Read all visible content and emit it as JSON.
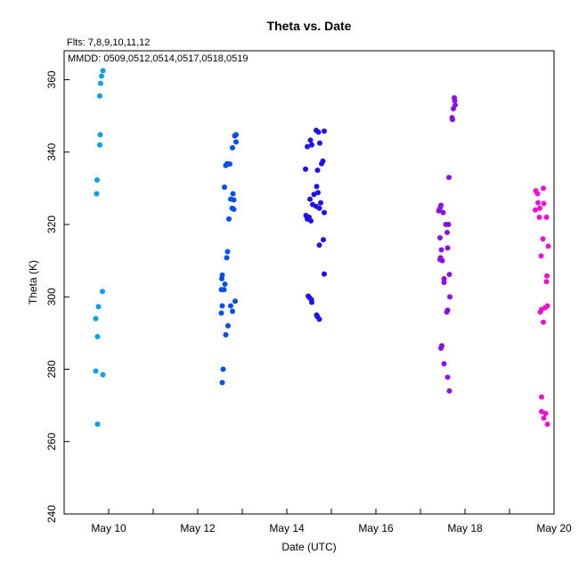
{
  "chart_data": {
    "type": "scatter",
    "title": "Theta  vs. Date",
    "annotations": [
      "Flts: 7,8,9,10,11,12",
      "MMDD: 0509,0512,0514,0517,0518,0519"
    ],
    "xlabel": "Date (UTC)",
    "ylabel": "Theta (K)",
    "xlim": [
      "2024-05-09",
      "2024-05-20"
    ],
    "ylim": [
      240,
      368
    ],
    "x_ticks": [
      {
        "value": "2024-05-10",
        "label": "May 10"
      },
      {
        "value": "2024-05-12",
        "label": "May 12"
      },
      {
        "value": "2024-05-14",
        "label": "May 14"
      },
      {
        "value": "2024-05-16",
        "label": "May 16"
      },
      {
        "value": "2024-05-18",
        "label": "May 18"
      },
      {
        "value": "2024-05-20",
        "label": "May 20"
      }
    ],
    "x_minor_ticks": [
      "2024-05-11",
      "2024-05-13",
      "2024-05-15",
      "2024-05-17",
      "2024-05-19"
    ],
    "y_ticks": [
      240,
      260,
      280,
      300,
      320,
      340,
      360
    ],
    "grid": false,
    "legend": "none",
    "series": [
      {
        "color": "#00a0f0",
        "points": [
          [
            9.87,
            362.5
          ],
          [
            9.84,
            361.0
          ],
          [
            9.82,
            359.0
          ],
          [
            9.8,
            355.5
          ],
          [
            9.81,
            344.8
          ],
          [
            9.8,
            342.0
          ],
          [
            9.74,
            332.3
          ],
          [
            9.73,
            328.5
          ],
          [
            9.86,
            301.5
          ],
          [
            9.77,
            297.3
          ],
          [
            9.71,
            294.0
          ],
          [
            9.75,
            289.0
          ],
          [
            9.71,
            279.5
          ],
          [
            9.87,
            278.5
          ],
          [
            9.75,
            264.8
          ]
        ]
      },
      {
        "color": "#0050f0",
        "points": [
          [
            12.86,
            344.8
          ],
          [
            12.83,
            344.5
          ],
          [
            12.86,
            342.8
          ],
          [
            12.78,
            341.2
          ],
          [
            12.66,
            336.8
          ],
          [
            12.72,
            336.7
          ],
          [
            12.63,
            336.3
          ],
          [
            12.6,
            330.3
          ],
          [
            12.79,
            328.5
          ],
          [
            12.74,
            327.0
          ],
          [
            12.81,
            326.8
          ],
          [
            12.77,
            324.5
          ],
          [
            12.81,
            324.2
          ],
          [
            12.7,
            321.5
          ],
          [
            12.67,
            312.5
          ],
          [
            12.65,
            310.8
          ],
          [
            12.55,
            306.0
          ],
          [
            12.54,
            305.0
          ],
          [
            12.61,
            303.5
          ],
          [
            12.53,
            302.0
          ],
          [
            12.59,
            302.0
          ],
          [
            12.84,
            298.8
          ],
          [
            12.74,
            297.5
          ],
          [
            12.55,
            297.5
          ],
          [
            12.78,
            296.0
          ],
          [
            12.53,
            295.5
          ],
          [
            12.68,
            292.0
          ],
          [
            12.63,
            289.5
          ],
          [
            12.57,
            280.0
          ],
          [
            12.55,
            276.3
          ]
        ]
      },
      {
        "color": "#2010f0",
        "points": [
          [
            14.66,
            346.0
          ],
          [
            14.71,
            345.5
          ],
          [
            14.84,
            345.8
          ],
          [
            14.53,
            343.3
          ],
          [
            14.56,
            342.0
          ],
          [
            14.74,
            342.5
          ],
          [
            14.46,
            341.5
          ],
          [
            14.81,
            337.5
          ],
          [
            14.78,
            336.8
          ],
          [
            14.42,
            335.3
          ],
          [
            14.69,
            335.0
          ],
          [
            14.67,
            330.5
          ],
          [
            14.7,
            328.8
          ],
          [
            14.61,
            328.3
          ],
          [
            14.52,
            327.0
          ],
          [
            14.76,
            326.0
          ],
          [
            14.58,
            325.5
          ],
          [
            14.66,
            325.0
          ],
          [
            14.73,
            324.5
          ],
          [
            14.84,
            323.3
          ],
          [
            14.43,
            322.5
          ],
          [
            14.5,
            322.0
          ],
          [
            14.46,
            321.5
          ],
          [
            14.54,
            321.0
          ],
          [
            14.82,
            315.8
          ],
          [
            14.73,
            314.3
          ],
          [
            14.84,
            306.3
          ],
          [
            14.48,
            300.2
          ],
          [
            14.51,
            299.8
          ],
          [
            14.55,
            299.3
          ],
          [
            14.56,
            298.5
          ],
          [
            14.67,
            295.0
          ],
          [
            14.69,
            294.5
          ],
          [
            14.73,
            293.8
          ]
        ]
      },
      {
        "color": "#8a10e8",
        "points": [
          [
            17.76,
            355.0
          ],
          [
            17.77,
            354.2
          ],
          [
            17.78,
            353.0
          ],
          [
            17.74,
            352.0
          ],
          [
            17.71,
            349.5
          ],
          [
            17.72,
            349.0
          ],
          [
            17.64,
            333.0
          ],
          [
            17.46,
            325.3
          ],
          [
            17.44,
            324.5
          ],
          [
            17.41,
            323.8
          ],
          [
            17.51,
            323.3
          ],
          [
            17.57,
            320.0
          ],
          [
            17.63,
            320.0
          ],
          [
            17.6,
            317.8
          ],
          [
            17.44,
            316.3
          ],
          [
            17.61,
            313.5
          ],
          [
            17.47,
            313.0
          ],
          [
            17.45,
            310.8
          ],
          [
            17.44,
            310.3
          ],
          [
            17.49,
            310.0
          ],
          [
            17.65,
            306.2
          ],
          [
            17.53,
            305.0
          ],
          [
            17.53,
            304.0
          ],
          [
            17.66,
            300.0
          ],
          [
            17.61,
            296.3
          ],
          [
            17.59,
            295.8
          ],
          [
            17.48,
            286.5
          ],
          [
            17.46,
            285.8
          ],
          [
            17.53,
            281.5
          ],
          [
            17.61,
            277.8
          ],
          [
            17.65,
            274.0
          ]
        ]
      },
      {
        "color": "#f010d0",
        "points": [
          [
            19.59,
            329.3
          ],
          [
            19.63,
            328.5
          ],
          [
            19.76,
            330.0
          ],
          [
            19.64,
            326.0
          ],
          [
            19.77,
            325.8
          ],
          [
            19.68,
            324.5
          ],
          [
            19.58,
            324.0
          ],
          [
            19.67,
            322.0
          ],
          [
            19.83,
            322.0
          ],
          [
            19.75,
            316.0
          ],
          [
            19.87,
            314.0
          ],
          [
            19.71,
            311.3
          ],
          [
            19.84,
            305.8
          ],
          [
            19.83,
            304.2
          ],
          [
            19.85,
            297.5
          ],
          [
            19.8,
            297.0
          ],
          [
            19.72,
            296.5
          ],
          [
            19.69,
            295.8
          ],
          [
            19.76,
            293.0
          ],
          [
            19.72,
            272.3
          ],
          [
            19.72,
            268.3
          ],
          [
            19.81,
            267.8
          ],
          [
            19.77,
            266.5
          ],
          [
            19.85,
            264.8
          ]
        ]
      }
    ]
  }
}
